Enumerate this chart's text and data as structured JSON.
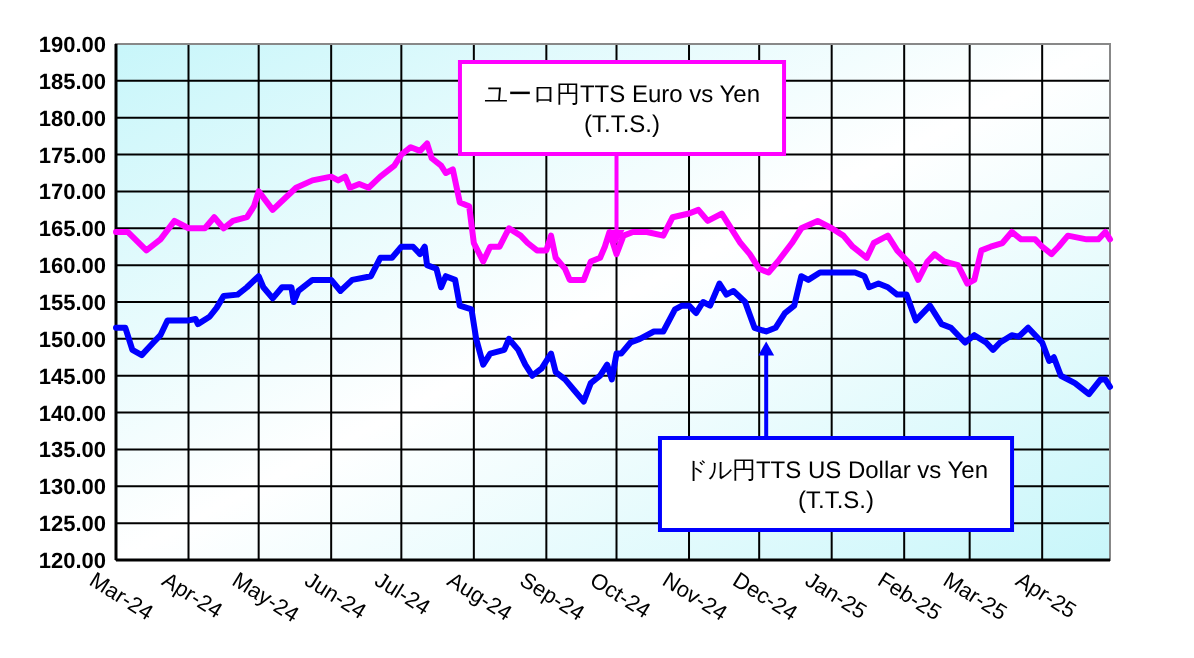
{
  "chart_data": {
    "type": "line",
    "grid": true,
    "xlim": [
      "2024-03-01",
      "2025-04-30"
    ],
    "ylim": [
      120,
      190
    ],
    "xticks": [
      {
        "value": "2024-03-01",
        "label": "Mar-24"
      },
      {
        "value": "2024-04-01",
        "label": "Apr-24"
      },
      {
        "value": "2024-05-01",
        "label": "May-24"
      },
      {
        "value": "2024-06-01",
        "label": "Jun-24"
      },
      {
        "value": "2024-07-01",
        "label": "Jul-24"
      },
      {
        "value": "2024-08-01",
        "label": "Aug-24"
      },
      {
        "value": "2024-09-01",
        "label": "Sep-24"
      },
      {
        "value": "2024-10-01",
        "label": "Oct-24"
      },
      {
        "value": "2024-11-01",
        "label": "Nov-24"
      },
      {
        "value": "2024-12-01",
        "label": "Dec-24"
      },
      {
        "value": "2025-01-01",
        "label": "Jan-25"
      },
      {
        "value": "2025-02-01",
        "label": "Feb-25"
      },
      {
        "value": "2025-03-01",
        "label": "Mar-25"
      },
      {
        "value": "2025-04-01",
        "label": "Apr-25"
      }
    ],
    "yticks": [
      {
        "value": 120,
        "label": "120.00"
      },
      {
        "value": 125,
        "label": "125.00"
      },
      {
        "value": 130,
        "label": "130.00"
      },
      {
        "value": 135,
        "label": "135.00"
      },
      {
        "value": 140,
        "label": "140.00"
      },
      {
        "value": 145,
        "label": "145.00"
      },
      {
        "value": 150,
        "label": "150.00"
      },
      {
        "value": 155,
        "label": "155.00"
      },
      {
        "value": 160,
        "label": "160.00"
      },
      {
        "value": 165,
        "label": "165.00"
      },
      {
        "value": 170,
        "label": "170.00"
      },
      {
        "value": 175,
        "label": "175.00"
      },
      {
        "value": 180,
        "label": "180.00"
      },
      {
        "value": 185,
        "label": "185.00"
      },
      {
        "value": 190,
        "label": "190.00"
      }
    ],
    "series": [
      {
        "name": "ユーロ円TTS Euro vs Yen (T.T.S.)",
        "color": "#ff00ff",
        "x": [
          "2024-03-01",
          "2024-03-06",
          "2024-03-14",
          "2024-03-20",
          "2024-03-26",
          "2024-04-01",
          "2024-04-08",
          "2024-04-12",
          "2024-04-16",
          "2024-04-20",
          "2024-04-26",
          "2024-04-29",
          "2024-05-01",
          "2024-05-07",
          "2024-05-12",
          "2024-05-17",
          "2024-05-24",
          "2024-06-01",
          "2024-06-04",
          "2024-06-07",
          "2024-06-09",
          "2024-06-13",
          "2024-06-17",
          "2024-06-22",
          "2024-06-28",
          "2024-07-01",
          "2024-07-05",
          "2024-07-09",
          "2024-07-12",
          "2024-07-14",
          "2024-07-18",
          "2024-07-20",
          "2024-07-23",
          "2024-07-26",
          "2024-07-30",
          "2024-08-01",
          "2024-08-05",
          "2024-08-08",
          "2024-08-12",
          "2024-08-16",
          "2024-08-21",
          "2024-08-24",
          "2024-08-28",
          "2024-09-01",
          "2024-09-03",
          "2024-09-05",
          "2024-09-09",
          "2024-09-11",
          "2024-09-17",
          "2024-09-20",
          "2024-09-24",
          "2024-09-26",
          "2024-09-28",
          "2024-10-01",
          "2024-10-04",
          "2024-10-08",
          "2024-10-14",
          "2024-10-21",
          "2024-10-25",
          "2024-11-01",
          "2024-11-05",
          "2024-11-09",
          "2024-11-15",
          "2024-11-19",
          "2024-11-23",
          "2024-11-27",
          "2024-12-01",
          "2024-12-05",
          "2024-12-09",
          "2024-12-15",
          "2024-12-19",
          "2024-12-26",
          "2025-01-01",
          "2025-01-06",
          "2025-01-10",
          "2025-01-16",
          "2025-01-19",
          "2025-01-25",
          "2025-01-29",
          "2025-02-01",
          "2025-02-04",
          "2025-02-07",
          "2025-02-11",
          "2025-02-14",
          "2025-02-18",
          "2025-02-24",
          "2025-02-28",
          "2025-03-03",
          "2025-03-06",
          "2025-03-10",
          "2025-03-15",
          "2025-03-19",
          "2025-03-23",
          "2025-03-29",
          "2025-04-01",
          "2025-04-05",
          "2025-04-08",
          "2025-04-12",
          "2025-04-20",
          "2025-04-25",
          "2025-04-28",
          "2025-04-30"
        ],
        "values": [
          164.5,
          164.5,
          162,
          163.5,
          166,
          165,
          165,
          166.5,
          165,
          166,
          166.5,
          168,
          170,
          167.5,
          169,
          170.5,
          171.5,
          172,
          171.5,
          172,
          170.5,
          171,
          170.5,
          172,
          173.5,
          175,
          176,
          175.5,
          176.5,
          174.5,
          173.5,
          172.5,
          173,
          168.5,
          168,
          163,
          160.5,
          162.5,
          162.5,
          165,
          164,
          163,
          162,
          162,
          164,
          161,
          159.5,
          158,
          158,
          160.5,
          161,
          162.5,
          164.5,
          161.5,
          164,
          164.5,
          164.5,
          164,
          166.5,
          167,
          167.5,
          166,
          167,
          165,
          163,
          161.5,
          159.5,
          159,
          160.5,
          163,
          165,
          166,
          165,
          164,
          162.5,
          161,
          163,
          164,
          162,
          161,
          160,
          158,
          160.5,
          161.5,
          160.5,
          160,
          157.5,
          158,
          162,
          162.5,
          163,
          164.5,
          163.5,
          163.5,
          162.5,
          161.5,
          162.5,
          164,
          163.5,
          163.5,
          164.5,
          163.5
        ]
      },
      {
        "name": "ドル円TTS US Dollar vs Yen (T.T.S.)",
        "color": "#0000ff",
        "x": [
          "2024-03-01",
          "2024-03-05",
          "2024-03-08",
          "2024-03-12",
          "2024-03-17",
          "2024-03-20",
          "2024-03-23",
          "2024-04-01",
          "2024-04-04",
          "2024-04-05",
          "2024-04-10",
          "2024-04-13",
          "2024-04-16",
          "2024-04-22",
          "2024-04-26",
          "2024-05-01",
          "2024-05-03",
          "2024-05-07",
          "2024-05-11",
          "2024-05-15",
          "2024-05-16",
          "2024-05-18",
          "2024-05-24",
          "2024-06-01",
          "2024-06-05",
          "2024-06-10",
          "2024-06-18",
          "2024-06-22",
          "2024-06-27",
          "2024-07-01",
          "2024-07-06",
          "2024-07-09",
          "2024-07-11",
          "2024-07-12",
          "2024-07-16",
          "2024-07-18",
          "2024-07-20",
          "2024-07-24",
          "2024-07-26",
          "2024-07-31",
          "2024-08-02",
          "2024-08-05",
          "2024-08-08",
          "2024-08-14",
          "2024-08-16",
          "2024-08-20",
          "2024-08-23",
          "2024-08-26",
          "2024-08-30",
          "2024-09-03",
          "2024-09-05",
          "2024-09-09",
          "2024-09-13",
          "2024-09-17",
          "2024-09-20",
          "2024-09-24",
          "2024-09-27",
          "2024-09-29",
          "2024-10-01",
          "2024-10-03",
          "2024-10-07",
          "2024-10-11",
          "2024-10-17",
          "2024-10-21",
          "2024-10-26",
          "2024-10-29",
          "2024-11-01",
          "2024-11-04",
          "2024-11-07",
          "2024-11-10",
          "2024-11-14",
          "2024-11-17",
          "2024-11-20",
          "2024-11-25",
          "2024-11-29",
          "2024-12-04",
          "2024-12-08",
          "2024-12-12",
          "2024-12-16",
          "2024-12-19",
          "2024-12-22",
          "2024-12-27",
          "2025-01-07",
          "2025-01-11",
          "2025-01-15",
          "2025-01-17",
          "2025-01-21",
          "2025-01-25",
          "2025-01-29",
          "2025-02-02",
          "2025-02-06",
          "2025-02-12",
          "2025-02-17",
          "2025-02-21",
          "2025-02-27",
          "2025-03-03",
          "2025-03-08",
          "2025-03-11",
          "2025-03-14",
          "2025-03-19",
          "2025-03-22",
          "2025-03-26",
          "2025-04-01",
          "2025-04-04",
          "2025-04-06",
          "2025-04-09",
          "2025-04-15",
          "2025-04-21",
          "2025-04-26",
          "2025-04-28",
          "2025-04-30"
        ],
        "values": [
          151.5,
          151.5,
          148.5,
          147.8,
          149.5,
          150.5,
          152.5,
          152.5,
          152.7,
          152,
          153,
          154.2,
          155.8,
          156,
          157,
          158.5,
          157,
          155.5,
          157,
          157,
          155,
          156.5,
          158,
          158,
          156.5,
          158,
          158.5,
          161,
          161,
          162.5,
          162.5,
          161.5,
          162.5,
          160,
          159.5,
          157,
          158.5,
          158,
          154.5,
          154,
          150,
          146.5,
          148,
          148.5,
          150,
          148.5,
          146.5,
          145,
          146,
          148,
          145.5,
          144.5,
          143,
          141.5,
          144,
          145,
          146.5,
          144.5,
          148,
          148,
          149.5,
          150,
          151,
          151,
          154,
          154.5,
          154.5,
          153.5,
          155,
          154.5,
          157.5,
          156,
          156.5,
          155,
          151.5,
          151,
          151.5,
          153.5,
          154.5,
          158.5,
          158,
          159,
          159,
          159,
          158.5,
          157,
          157.5,
          157,
          156,
          156,
          152.5,
          154.5,
          152,
          151.5,
          149.5,
          150.5,
          149.5,
          148.5,
          149.5,
          150.5,
          150.3,
          151.5,
          149.5,
          147,
          147.5,
          145,
          144,
          142.5,
          144.5,
          144.5,
          143.5
        ]
      }
    ]
  }
}
